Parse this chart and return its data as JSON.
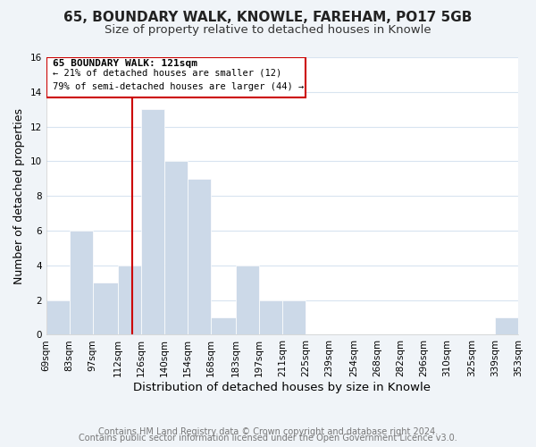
{
  "title": "65, BOUNDARY WALK, KNOWLE, FAREHAM, PO17 5GB",
  "subtitle": "Size of property relative to detached houses in Knowle",
  "xlabel": "Distribution of detached houses by size in Knowle",
  "ylabel": "Number of detached properties",
  "bin_edges": [
    69,
    83,
    97,
    112,
    126,
    140,
    154,
    168,
    183,
    197,
    211,
    225,
    239,
    254,
    268,
    282,
    296,
    310,
    325,
    339,
    353
  ],
  "counts": [
    2,
    6,
    3,
    4,
    13,
    10,
    9,
    1,
    4,
    2,
    2,
    0,
    0,
    0,
    0,
    0,
    0,
    0,
    0,
    1
  ],
  "bar_color": "#ccd9e8",
  "bar_edgecolor": "#ffffff",
  "grid_color": "#d8e4f0",
  "plot_bg_color": "#ffffff",
  "fig_bg_color": "#f0f4f8",
  "property_size": 121,
  "property_line_color": "#cc0000",
  "annotation_box_color": "#cc0000",
  "annotation_text_line1": "65 BOUNDARY WALK: 121sqm",
  "annotation_text_line2": "← 21% of detached houses are smaller (12)",
  "annotation_text_line3": "79% of semi-detached houses are larger (44) →",
  "footer_line1": "Contains HM Land Registry data © Crown copyright and database right 2024.",
  "footer_line2": "Contains public sector information licensed under the Open Government Licence v3.0.",
  "ylim": [
    0,
    16
  ],
  "yticks": [
    0,
    2,
    4,
    6,
    8,
    10,
    12,
    14,
    16
  ],
  "title_fontsize": 11,
  "subtitle_fontsize": 9.5,
  "xlabel_fontsize": 9.5,
  "ylabel_fontsize": 9,
  "tick_fontsize": 7.5,
  "footer_fontsize": 7,
  "annot_fontsize1": 8,
  "annot_fontsize2": 7.5
}
